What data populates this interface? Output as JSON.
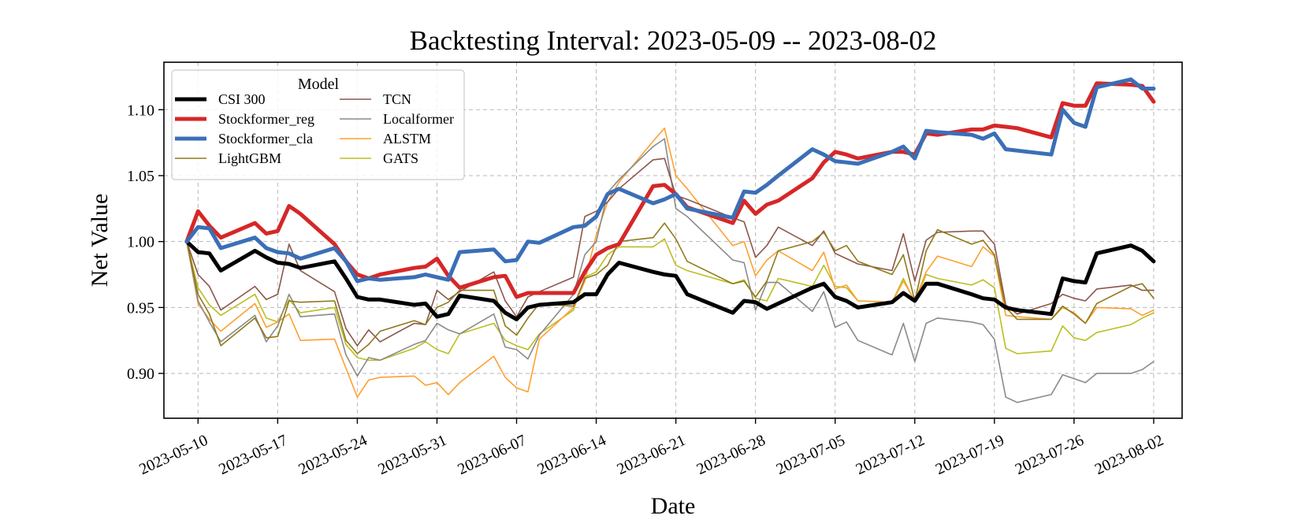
{
  "chart_data": {
    "type": "line",
    "title": "Backtesting Interval: 2023-05-09 -- 2023-08-02",
    "xlabel": "Date",
    "ylabel": "Net Value",
    "x_start": "2023-05-09",
    "x_end": "2023-08-02",
    "xlim_days": [
      -2,
      87.5
    ],
    "ylim": [
      0.866,
      1.136
    ],
    "xticks": [
      {
        "day": 1,
        "label": "2023-05-10"
      },
      {
        "day": 8,
        "label": "2023-05-17"
      },
      {
        "day": 15,
        "label": "2023-05-24"
      },
      {
        "day": 22,
        "label": "2023-05-31"
      },
      {
        "day": 29,
        "label": "2023-06-07"
      },
      {
        "day": 36,
        "label": "2023-06-14"
      },
      {
        "day": 43,
        "label": "2023-06-21"
      },
      {
        "day": 50,
        "label": "2023-06-28"
      },
      {
        "day": 57,
        "label": "2023-07-05"
      },
      {
        "day": 64,
        "label": "2023-07-12"
      },
      {
        "day": 71,
        "label": "2023-07-19"
      },
      {
        "day": 78,
        "label": "2023-07-26"
      },
      {
        "day": 85,
        "label": "2023-08-02"
      }
    ],
    "yticks": [
      {
        "value": 0.9,
        "label": "0.90"
      },
      {
        "value": 0.95,
        "label": "0.95"
      },
      {
        "value": 1.0,
        "label": "1.00"
      },
      {
        "value": 1.05,
        "label": "1.05"
      },
      {
        "value": 1.1,
        "label": "1.10"
      }
    ],
    "grid": true,
    "legend": {
      "title": "Model",
      "placement": "top-left",
      "columns": 2
    },
    "x_days": [
      0,
      1,
      2,
      3,
      6,
      7,
      8,
      9,
      10,
      13,
      14,
      15,
      16,
      17,
      20,
      21,
      22,
      23,
      24,
      27,
      28,
      29,
      30,
      31,
      34,
      35,
      36,
      37,
      38,
      41,
      42,
      43,
      44,
      48,
      49,
      50,
      51,
      52,
      55,
      56,
      57,
      58,
      59,
      62,
      63,
      64,
      65,
      66,
      69,
      70,
      71,
      72,
      73,
      76,
      77,
      78,
      79,
      80,
      83,
      84,
      85
    ],
    "series": [
      {
        "name": "CSI 300",
        "color": "#000000",
        "width": 5,
        "values": [
          1.0,
          0.992,
          0.991,
          0.978,
          0.993,
          0.988,
          0.984,
          0.983,
          0.98,
          0.985,
          0.972,
          0.958,
          0.956,
          0.956,
          0.952,
          0.953,
          0.943,
          0.945,
          0.959,
          0.955,
          0.946,
          0.941,
          0.95,
          0.952,
          0.954,
          0.96,
          0.96,
          0.975,
          0.984,
          0.977,
          0.975,
          0.974,
          0.96,
          0.946,
          0.955,
          0.954,
          0.949,
          0.953,
          0.965,
          0.968,
          0.958,
          0.955,
          0.95,
          0.954,
          0.961,
          0.955,
          0.968,
          0.968,
          0.96,
          0.957,
          0.956,
          0.95,
          0.948,
          0.945,
          0.972,
          0.97,
          0.969,
          0.991,
          0.997,
          0.993,
          0.985
        ]
      },
      {
        "name": "Stockformer_reg",
        "color": "#d62728",
        "width": 5,
        "values": [
          1.0,
          1.023,
          1.012,
          1.003,
          1.014,
          1.006,
          1.008,
          1.027,
          1.021,
          0.998,
          0.985,
          0.975,
          0.972,
          0.975,
          0.98,
          0.981,
          0.987,
          0.974,
          0.965,
          0.973,
          0.974,
          0.958,
          0.961,
          0.961,
          0.961,
          0.977,
          0.99,
          0.995,
          0.998,
          1.042,
          1.043,
          1.036,
          1.026,
          1.014,
          1.031,
          1.021,
          1.028,
          1.031,
          1.048,
          1.06,
          1.068,
          1.066,
          1.063,
          1.068,
          1.068,
          1.066,
          1.082,
          1.081,
          1.085,
          1.085,
          1.088,
          1.087,
          1.086,
          1.079,
          1.105,
          1.103,
          1.103,
          1.12,
          1.119,
          1.118,
          1.106
        ]
      },
      {
        "name": "Stockformer_cla",
        "color": "#3b6fb6",
        "width": 5,
        "values": [
          1.0,
          1.011,
          1.01,
          0.995,
          1.003,
          0.995,
          0.992,
          0.991,
          0.987,
          0.995,
          0.985,
          0.97,
          0.972,
          0.971,
          0.973,
          0.975,
          0.973,
          0.971,
          0.992,
          0.994,
          0.985,
          0.986,
          1.0,
          0.999,
          1.011,
          1.012,
          1.019,
          1.036,
          1.04,
          1.029,
          1.032,
          1.036,
          1.025,
          1.018,
          1.038,
          1.037,
          1.043,
          1.05,
          1.07,
          1.066,
          1.061,
          1.06,
          1.059,
          1.068,
          1.072,
          1.063,
          1.084,
          1.083,
          1.081,
          1.078,
          1.082,
          1.07,
          1.069,
          1.066,
          1.1,
          1.09,
          1.087,
          1.117,
          1.123,
          1.116,
          1.116
        ]
      },
      {
        "name": "LightGBM",
        "color": "#8f7a1a",
        "width": 1.6,
        "values": [
          1.0,
          0.96,
          0.945,
          0.921,
          0.942,
          0.927,
          0.928,
          0.955,
          0.954,
          0.955,
          0.925,
          0.915,
          0.922,
          0.932,
          0.94,
          0.937,
          0.95,
          0.954,
          0.963,
          0.963,
          0.936,
          0.929,
          0.942,
          0.953,
          0.951,
          0.972,
          0.975,
          0.982,
          1.0,
          1.003,
          1.014,
          1.002,
          0.985,
          0.968,
          0.97,
          0.958,
          0.97,
          0.993,
          1.0,
          1.007,
          0.993,
          0.997,
          0.985,
          0.975,
          0.99,
          0.955,
          0.993,
          1.009,
          0.998,
          1.001,
          0.99,
          0.95,
          0.941,
          0.941,
          0.951,
          0.945,
          0.938,
          0.953,
          0.966,
          0.968,
          0.957
        ]
      },
      {
        "name": "TCN",
        "color": "#8c564b",
        "width": 1.6,
        "values": [
          1.0,
          0.975,
          0.966,
          0.948,
          0.966,
          0.956,
          0.96,
          0.998,
          0.978,
          0.962,
          0.934,
          0.921,
          0.933,
          0.924,
          0.938,
          0.937,
          0.963,
          0.956,
          0.962,
          0.977,
          0.955,
          0.943,
          0.958,
          0.962,
          0.973,
          1.019,
          1.023,
          1.03,
          1.04,
          1.062,
          1.063,
          1.035,
          1.032,
          1.018,
          1.015,
          0.988,
          0.997,
          1.011,
          0.997,
          1.008,
          0.991,
          0.987,
          0.983,
          0.978,
          1.006,
          0.97,
          1.001,
          1.007,
          1.008,
          1.008,
          0.998,
          0.952,
          0.945,
          0.953,
          0.96,
          0.957,
          0.955,
          0.964,
          0.967,
          0.963,
          0.963
        ]
      },
      {
        "name": "Localformer",
        "color": "#8a8a8a",
        "width": 1.6,
        "values": [
          1.0,
          0.955,
          0.939,
          0.924,
          0.944,
          0.924,
          0.936,
          0.96,
          0.943,
          0.945,
          0.914,
          0.898,
          0.912,
          0.91,
          0.922,
          0.925,
          0.938,
          0.933,
          0.93,
          0.945,
          0.92,
          0.918,
          0.911,
          0.929,
          0.96,
          0.99,
          1.0,
          1.037,
          1.047,
          1.072,
          1.078,
          1.025,
          1.019,
          0.986,
          0.984,
          0.948,
          0.969,
          0.969,
          0.947,
          0.962,
          0.935,
          0.939,
          0.925,
          0.914,
          0.938,
          0.909,
          0.938,
          0.942,
          0.939,
          0.937,
          0.926,
          0.882,
          0.878,
          0.884,
          0.899,
          0.896,
          0.893,
          0.9,
          0.9,
          0.903,
          0.909
        ]
      },
      {
        "name": "ALSTM",
        "color": "#ff9f2f",
        "width": 1.6,
        "values": [
          1.0,
          0.953,
          0.941,
          0.932,
          0.953,
          0.935,
          0.939,
          0.945,
          0.925,
          0.926,
          0.904,
          0.882,
          0.895,
          0.897,
          0.898,
          0.891,
          0.893,
          0.884,
          0.893,
          0.913,
          0.897,
          0.889,
          0.886,
          0.926,
          0.95,
          0.97,
          1.005,
          1.03,
          1.045,
          1.076,
          1.086,
          1.05,
          1.04,
          0.997,
          1.0,
          0.974,
          0.986,
          0.993,
          0.978,
          0.992,
          0.964,
          0.967,
          0.955,
          0.954,
          0.97,
          0.955,
          0.977,
          0.989,
          0.981,
          0.996,
          0.989,
          0.944,
          0.943,
          0.941,
          0.95,
          0.946,
          0.938,
          0.95,
          0.949,
          0.944,
          0.948
        ]
      },
      {
        "name": "GATS",
        "color": "#bcbd22",
        "width": 1.6,
        "values": [
          1.0,
          0.965,
          0.952,
          0.944,
          0.96,
          0.942,
          0.939,
          0.956,
          0.946,
          0.95,
          0.922,
          0.912,
          0.91,
          0.91,
          0.919,
          0.924,
          0.918,
          0.915,
          0.93,
          0.938,
          0.925,
          0.921,
          0.918,
          0.93,
          0.948,
          0.973,
          0.977,
          0.99,
          0.996,
          0.996,
          1.002,
          0.982,
          0.978,
          0.968,
          0.971,
          0.957,
          0.955,
          0.972,
          0.966,
          0.982,
          0.966,
          0.965,
          0.955,
          0.954,
          0.972,
          0.954,
          0.975,
          0.972,
          0.967,
          0.971,
          0.965,
          0.919,
          0.915,
          0.917,
          0.936,
          0.927,
          0.925,
          0.931,
          0.937,
          0.942,
          0.946
        ]
      }
    ]
  }
}
